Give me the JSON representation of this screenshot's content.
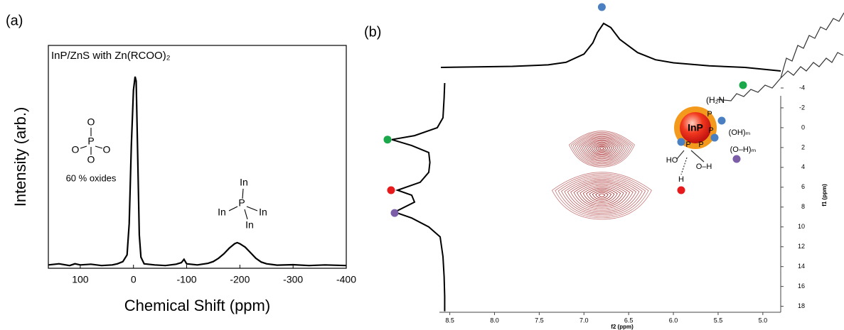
{
  "chart_data": [
    {
      "type": "line",
      "panel_label": "(a)",
      "title": "InP/ZnS with Zn(RCOO)₂",
      "x_label": "Chemical Shift (ppm)",
      "y_label": "Intensity (arb.)",
      "xlim": [
        160,
        -400
      ],
      "xticks": [
        100,
        0,
        -100,
        -200,
        -300,
        -400
      ],
      "ylim": [
        0,
        1
      ],
      "color": "#000000",
      "x": [
        160,
        140,
        120,
        110,
        100,
        80,
        60,
        40,
        30,
        20,
        12,
        8,
        4,
        0,
        -3,
        -5,
        -8,
        -11,
        -14,
        -20,
        -40,
        -60,
        -80,
        -90,
        -95,
        -100,
        -120,
        -140,
        -150,
        -160,
        -170,
        -180,
        -190,
        -195,
        -200,
        -210,
        -220,
        -230,
        -240,
        -250,
        -270,
        -300,
        -330,
        -360,
        -400
      ],
      "values": [
        0.015,
        0.02,
        0.012,
        0.02,
        0.015,
        0.018,
        0.012,
        0.015,
        0.02,
        0.03,
        0.06,
        0.2,
        0.55,
        0.8,
        0.86,
        0.84,
        0.5,
        0.15,
        0.05,
        0.02,
        0.015,
        0.012,
        0.018,
        0.025,
        0.04,
        0.02,
        0.015,
        0.022,
        0.03,
        0.045,
        0.065,
        0.09,
        0.11,
        0.115,
        0.11,
        0.095,
        0.07,
        0.045,
        0.028,
        0.02,
        0.014,
        0.016,
        0.012,
        0.015,
        0.012
      ],
      "annotations": [
        "60 % oxides"
      ],
      "oxide_labels": [
        "O",
        "O",
        "P",
        "O",
        "O"
      ],
      "phosphide_labels": [
        "In",
        "P",
        "In",
        "In",
        "In"
      ]
    },
    {
      "type": "contour2d",
      "panel_label": "(b)",
      "x_label": "f2 (ppm)",
      "y_label": "f1 (ppm)",
      "xlim": [
        8.6,
        4.8
      ],
      "xticks": [
        8.5,
        {
          "value": 8,
          "label": "8.0"
        },
        7.5,
        {
          "value": 7,
          "label": "7.0"
        },
        6.5,
        {
          "value": 6,
          "label": "6.0"
        },
        5.5,
        {
          "value": 5,
          "label": "5.0"
        }
      ],
      "ylim": [
        -5,
        18.6
      ],
      "yticks": [
        -4,
        -2,
        0,
        2,
        4,
        6,
        8,
        10,
        12,
        14,
        16,
        18
      ],
      "peaks": {
        "x": [
          6.8,
          6.8
        ],
        "y": [
          2.1,
          6.8
        ]
      },
      "contour_color": "#9b0f0f",
      "top_projection": {
        "x": [
          8.6,
          8.2,
          7.8,
          7.4,
          7.2,
          7.0,
          6.9,
          6.85,
          6.78,
          6.7,
          6.6,
          6.4,
          6.2,
          6.0,
          5.6,
          5.2,
          4.8
        ],
        "values": [
          0.07,
          0.08,
          0.09,
          0.12,
          0.17,
          0.33,
          0.55,
          0.75,
          0.93,
          0.85,
          0.62,
          0.36,
          0.22,
          0.16,
          0.1,
          0.07,
          0.0
        ]
      },
      "left_projection": {
        "y": [
          -4.5,
          -3,
          -1,
          0,
          0.8,
          1.2,
          1.8,
          2.5,
          3.5,
          4.5,
          5.5,
          6.3,
          6.8,
          7.5,
          8.5,
          9.1,
          10,
          11,
          13,
          15,
          17,
          18.5
        ],
        "values": [
          0.02,
          0.03,
          0.05,
          0.15,
          0.55,
          0.95,
          0.6,
          0.3,
          0.28,
          0.3,
          0.45,
          0.85,
          0.6,
          0.55,
          0.9,
          0.6,
          0.3,
          0.1,
          0.05,
          0.03,
          0.02,
          0.02
        ]
      },
      "top_marker": {
        "x": 6.8,
        "color": "#4a7fc1"
      },
      "left_markers": {
        "y": [
          1.2,
          6.3,
          8.6
        ],
        "colors": [
          "#1aa84a",
          "#e8191b",
          "#7b5ea7"
        ]
      },
      "structure_labels": [
        "InP",
        "(H₂N",
        "P",
        "P",
        "P",
        "P",
        "(OH)ₘ",
        "(O–H)ₘ",
        "HO",
        "O–H",
        "H"
      ]
    }
  ]
}
